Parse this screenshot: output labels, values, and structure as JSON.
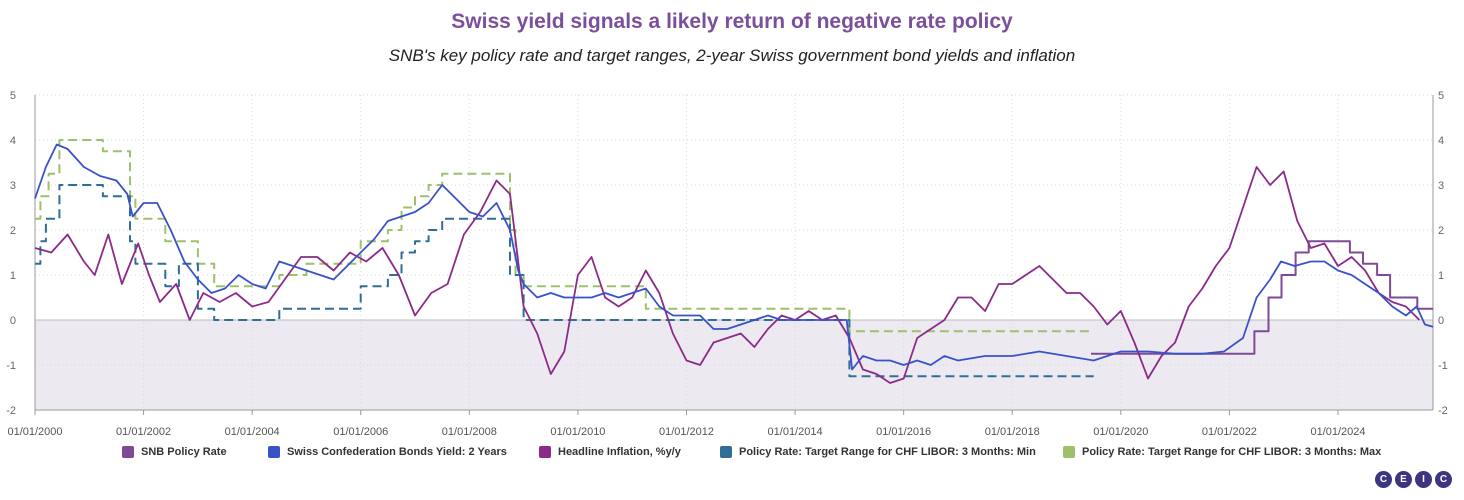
{
  "brand": {
    "accent": "#7b4f9a",
    "logo_text": "CEIC"
  },
  "chart_data": {
    "type": "line",
    "title": "Swiss yield signals a likely return of negative rate policy",
    "subtitle": "SNB's key policy rate and target ranges, 2-year Swiss government bond yields and inflation",
    "ylim": [
      -2,
      5
    ],
    "yticks": [
      -2,
      -1,
      0,
      1,
      2,
      3,
      4,
      5
    ],
    "xlim": [
      2000.0,
      2025.75
    ],
    "xticks": [
      "01/01/2000",
      "01/01/2002",
      "01/01/2004",
      "01/01/2006",
      "01/01/2008",
      "01/01/2010",
      "01/01/2012",
      "01/01/2014",
      "01/01/2016",
      "01/01/2018",
      "01/01/2020",
      "01/01/2022",
      "01/01/2024"
    ],
    "grid": true,
    "legend_position": "bottom",
    "negative_region_shaded": true,
    "series": [
      {
        "name": "SNB Policy Rate",
        "color": "#7e4a96",
        "style": "step",
        "points": [
          [
            2019.45,
            -0.75
          ],
          [
            2022.46,
            -0.25
          ],
          [
            2022.72,
            0.5
          ],
          [
            2022.96,
            1.0
          ],
          [
            2023.22,
            1.5
          ],
          [
            2023.46,
            1.75
          ],
          [
            2024.22,
            1.5
          ],
          [
            2024.46,
            1.25
          ],
          [
            2024.72,
            1.0
          ],
          [
            2024.96,
            0.5
          ],
          [
            2025.46,
            0.25
          ],
          [
            2025.75,
            0.25
          ]
        ]
      },
      {
        "name": "Swiss Confederation Bonds Yield: 2 Years",
        "color": "#3a52c8",
        "style": "line",
        "points": [
          [
            2000.0,
            2.7
          ],
          [
            2000.2,
            3.4
          ],
          [
            2000.4,
            3.9
          ],
          [
            2000.6,
            3.8
          ],
          [
            2000.9,
            3.4
          ],
          [
            2001.2,
            3.2
          ],
          [
            2001.5,
            3.1
          ],
          [
            2001.7,
            2.8
          ],
          [
            2001.8,
            2.3
          ],
          [
            2002.0,
            2.6
          ],
          [
            2002.25,
            2.6
          ],
          [
            2002.5,
            2.0
          ],
          [
            2002.75,
            1.3
          ],
          [
            2003.0,
            0.9
          ],
          [
            2003.25,
            0.6
          ],
          [
            2003.5,
            0.7
          ],
          [
            2003.75,
            1.0
          ],
          [
            2004.0,
            0.8
          ],
          [
            2004.25,
            0.7
          ],
          [
            2004.5,
            1.3
          ],
          [
            2004.75,
            1.2
          ],
          [
            2005.0,
            1.1
          ],
          [
            2005.25,
            1.0
          ],
          [
            2005.5,
            0.9
          ],
          [
            2005.75,
            1.2
          ],
          [
            2006.0,
            1.5
          ],
          [
            2006.25,
            1.8
          ],
          [
            2006.5,
            2.2
          ],
          [
            2006.75,
            2.3
          ],
          [
            2007.0,
            2.4
          ],
          [
            2007.25,
            2.6
          ],
          [
            2007.5,
            3.0
          ],
          [
            2007.75,
            2.7
          ],
          [
            2008.0,
            2.4
          ],
          [
            2008.25,
            2.3
          ],
          [
            2008.5,
            2.6
          ],
          [
            2008.75,
            2.0
          ],
          [
            2008.9,
            1.1
          ],
          [
            2009.0,
            0.8
          ],
          [
            2009.25,
            0.5
          ],
          [
            2009.5,
            0.6
          ],
          [
            2009.75,
            0.5
          ],
          [
            2010.0,
            0.5
          ],
          [
            2010.25,
            0.5
          ],
          [
            2010.5,
            0.6
          ],
          [
            2010.75,
            0.5
          ],
          [
            2011.0,
            0.6
          ],
          [
            2011.25,
            0.7
          ],
          [
            2011.5,
            0.3
          ],
          [
            2011.75,
            0.1
          ],
          [
            2012.0,
            0.1
          ],
          [
            2012.25,
            0.1
          ],
          [
            2012.5,
            -0.2
          ],
          [
            2012.75,
            -0.2
          ],
          [
            2013.0,
            -0.1
          ],
          [
            2013.25,
            0.0
          ],
          [
            2013.5,
            0.1
          ],
          [
            2013.75,
            0.0
          ],
          [
            2014.0,
            0.0
          ],
          [
            2014.25,
            0.0
          ],
          [
            2014.5,
            0.0
          ],
          [
            2014.75,
            0.0
          ],
          [
            2014.95,
            0.0
          ],
          [
            2015.05,
            -1.1
          ],
          [
            2015.25,
            -0.8
          ],
          [
            2015.5,
            -0.9
          ],
          [
            2015.75,
            -0.9
          ],
          [
            2016.0,
            -1.0
          ],
          [
            2016.25,
            -0.9
          ],
          [
            2016.5,
            -1.0
          ],
          [
            2016.75,
            -0.8
          ],
          [
            2017.0,
            -0.9
          ],
          [
            2017.5,
            -0.8
          ],
          [
            2018.0,
            -0.8
          ],
          [
            2018.5,
            -0.7
          ],
          [
            2019.0,
            -0.8
          ],
          [
            2019.5,
            -0.9
          ],
          [
            2020.0,
            -0.7
          ],
          [
            2020.5,
            -0.7
          ],
          [
            2021.0,
            -0.75
          ],
          [
            2021.5,
            -0.75
          ],
          [
            2021.9,
            -0.7
          ],
          [
            2022.25,
            -0.4
          ],
          [
            2022.5,
            0.5
          ],
          [
            2022.75,
            0.9
          ],
          [
            2022.95,
            1.3
          ],
          [
            2023.2,
            1.2
          ],
          [
            2023.5,
            1.3
          ],
          [
            2023.75,
            1.3
          ],
          [
            2024.0,
            1.1
          ],
          [
            2024.25,
            1.0
          ],
          [
            2024.5,
            0.8
          ],
          [
            2024.75,
            0.6
          ],
          [
            2025.0,
            0.3
          ],
          [
            2025.25,
            0.1
          ],
          [
            2025.45,
            0.3
          ],
          [
            2025.6,
            -0.1
          ],
          [
            2025.75,
            -0.15
          ]
        ]
      },
      {
        "name": "Headline Inflation, %y/y",
        "color": "#8c2a8a",
        "style": "line",
        "points": [
          [
            2000.0,
            1.6
          ],
          [
            2000.3,
            1.5
          ],
          [
            2000.6,
            1.9
          ],
          [
            2000.9,
            1.3
          ],
          [
            2001.1,
            1.0
          ],
          [
            2001.35,
            1.9
          ],
          [
            2001.6,
            0.8
          ],
          [
            2001.9,
            1.7
          ],
          [
            2002.1,
            1.0
          ],
          [
            2002.3,
            0.4
          ],
          [
            2002.6,
            0.8
          ],
          [
            2002.85,
            0.0
          ],
          [
            2003.1,
            0.6
          ],
          [
            2003.4,
            0.4
          ],
          [
            2003.7,
            0.6
          ],
          [
            2004.0,
            0.3
          ],
          [
            2004.3,
            0.4
          ],
          [
            2004.6,
            0.9
          ],
          [
            2004.9,
            1.4
          ],
          [
            2005.2,
            1.4
          ],
          [
            2005.5,
            1.1
          ],
          [
            2005.8,
            1.5
          ],
          [
            2006.1,
            1.3
          ],
          [
            2006.4,
            1.6
          ],
          [
            2006.7,
            1.0
          ],
          [
            2007.0,
            0.1
          ],
          [
            2007.3,
            0.6
          ],
          [
            2007.6,
            0.8
          ],
          [
            2007.9,
            1.9
          ],
          [
            2008.2,
            2.4
          ],
          [
            2008.5,
            3.1
          ],
          [
            2008.75,
            2.8
          ],
          [
            2009.0,
            0.3
          ],
          [
            2009.25,
            -0.3
          ],
          [
            2009.5,
            -1.2
          ],
          [
            2009.75,
            -0.7
          ],
          [
            2010.0,
            1.0
          ],
          [
            2010.25,
            1.4
          ],
          [
            2010.5,
            0.5
          ],
          [
            2010.75,
            0.3
          ],
          [
            2011.0,
            0.5
          ],
          [
            2011.25,
            1.1
          ],
          [
            2011.5,
            0.6
          ],
          [
            2011.75,
            -0.3
          ],
          [
            2012.0,
            -0.9
          ],
          [
            2012.25,
            -1.0
          ],
          [
            2012.5,
            -0.5
          ],
          [
            2012.75,
            -0.4
          ],
          [
            2013.0,
            -0.3
          ],
          [
            2013.25,
            -0.6
          ],
          [
            2013.5,
            -0.2
          ],
          [
            2013.75,
            0.1
          ],
          [
            2014.0,
            0.0
          ],
          [
            2014.25,
            0.2
          ],
          [
            2014.5,
            0.0
          ],
          [
            2014.75,
            0.1
          ],
          [
            2015.0,
            -0.4
          ],
          [
            2015.25,
            -1.1
          ],
          [
            2015.5,
            -1.2
          ],
          [
            2015.75,
            -1.4
          ],
          [
            2016.0,
            -1.3
          ],
          [
            2016.25,
            -0.4
          ],
          [
            2016.5,
            -0.2
          ],
          [
            2016.75,
            0.0
          ],
          [
            2017.0,
            0.5
          ],
          [
            2017.25,
            0.5
          ],
          [
            2017.5,
            0.2
          ],
          [
            2017.75,
            0.8
          ],
          [
            2018.0,
            0.8
          ],
          [
            2018.25,
            1.0
          ],
          [
            2018.5,
            1.2
          ],
          [
            2018.75,
            0.9
          ],
          [
            2019.0,
            0.6
          ],
          [
            2019.25,
            0.6
          ],
          [
            2019.5,
            0.3
          ],
          [
            2019.75,
            -0.1
          ],
          [
            2020.0,
            0.2
          ],
          [
            2020.25,
            -0.5
          ],
          [
            2020.5,
            -1.3
          ],
          [
            2020.75,
            -0.8
          ],
          [
            2021.0,
            -0.5
          ],
          [
            2021.25,
            0.3
          ],
          [
            2021.5,
            0.7
          ],
          [
            2021.75,
            1.2
          ],
          [
            2022.0,
            1.6
          ],
          [
            2022.25,
            2.5
          ],
          [
            2022.5,
            3.4
          ],
          [
            2022.75,
            3.0
          ],
          [
            2023.0,
            3.3
          ],
          [
            2023.25,
            2.2
          ],
          [
            2023.5,
            1.6
          ],
          [
            2023.75,
            1.7
          ],
          [
            2024.0,
            1.2
          ],
          [
            2024.25,
            1.4
          ],
          [
            2024.5,
            1.1
          ],
          [
            2024.75,
            0.6
          ],
          [
            2025.0,
            0.4
          ],
          [
            2025.25,
            0.3
          ],
          [
            2025.5,
            0.0
          ]
        ]
      },
      {
        "name": "Policy Rate: Target Range for CHF LIBOR: 3 Months: Min",
        "color": "#2f6f95",
        "style": "step-dashed",
        "points": [
          [
            2000.0,
            1.25
          ],
          [
            2000.1,
            1.75
          ],
          [
            2000.2,
            2.25
          ],
          [
            2000.45,
            3.0
          ],
          [
            2001.25,
            2.75
          ],
          [
            2001.75,
            1.75
          ],
          [
            2001.85,
            1.25
          ],
          [
            2002.4,
            0.75
          ],
          [
            2002.65,
            1.25
          ],
          [
            2003.0,
            0.25
          ],
          [
            2003.3,
            0.0
          ],
          [
            2004.0,
            0.0
          ],
          [
            2004.5,
            0.25
          ],
          [
            2005.0,
            0.25
          ],
          [
            2005.25,
            0.25
          ],
          [
            2005.75,
            0.25
          ],
          [
            2006.0,
            0.75
          ],
          [
            2006.5,
            1.0
          ],
          [
            2006.75,
            1.5
          ],
          [
            2007.0,
            1.75
          ],
          [
            2007.25,
            2.0
          ],
          [
            2007.5,
            2.25
          ],
          [
            2008.75,
            1.0
          ],
          [
            2009.0,
            0.0
          ],
          [
            2011.25,
            0.0
          ],
          [
            2015.0,
            -1.25
          ],
          [
            2019.5,
            -1.25
          ]
        ]
      },
      {
        "name": "Policy Rate: Target Range for CHF LIBOR: 3 Months: Max",
        "color": "#9dc06a",
        "style": "step-dashed",
        "points": [
          [
            2000.0,
            2.25
          ],
          [
            2000.1,
            2.75
          ],
          [
            2000.25,
            3.25
          ],
          [
            2000.45,
            4.0
          ],
          [
            2001.25,
            3.75
          ],
          [
            2001.75,
            2.75
          ],
          [
            2001.85,
            2.25
          ],
          [
            2002.4,
            1.75
          ],
          [
            2003.0,
            1.25
          ],
          [
            2003.3,
            0.75
          ],
          [
            2004.5,
            1.0
          ],
          [
            2005.0,
            1.25
          ],
          [
            2006.0,
            1.75
          ],
          [
            2006.5,
            2.0
          ],
          [
            2006.75,
            2.5
          ],
          [
            2007.0,
            2.75
          ],
          [
            2007.25,
            3.0
          ],
          [
            2007.5,
            3.25
          ],
          [
            2008.75,
            2.0
          ],
          [
            2008.85,
            1.0
          ],
          [
            2009.0,
            0.75
          ],
          [
            2011.25,
            0.25
          ],
          [
            2015.0,
            -0.25
          ],
          [
            2019.5,
            -0.25
          ]
        ]
      }
    ]
  }
}
